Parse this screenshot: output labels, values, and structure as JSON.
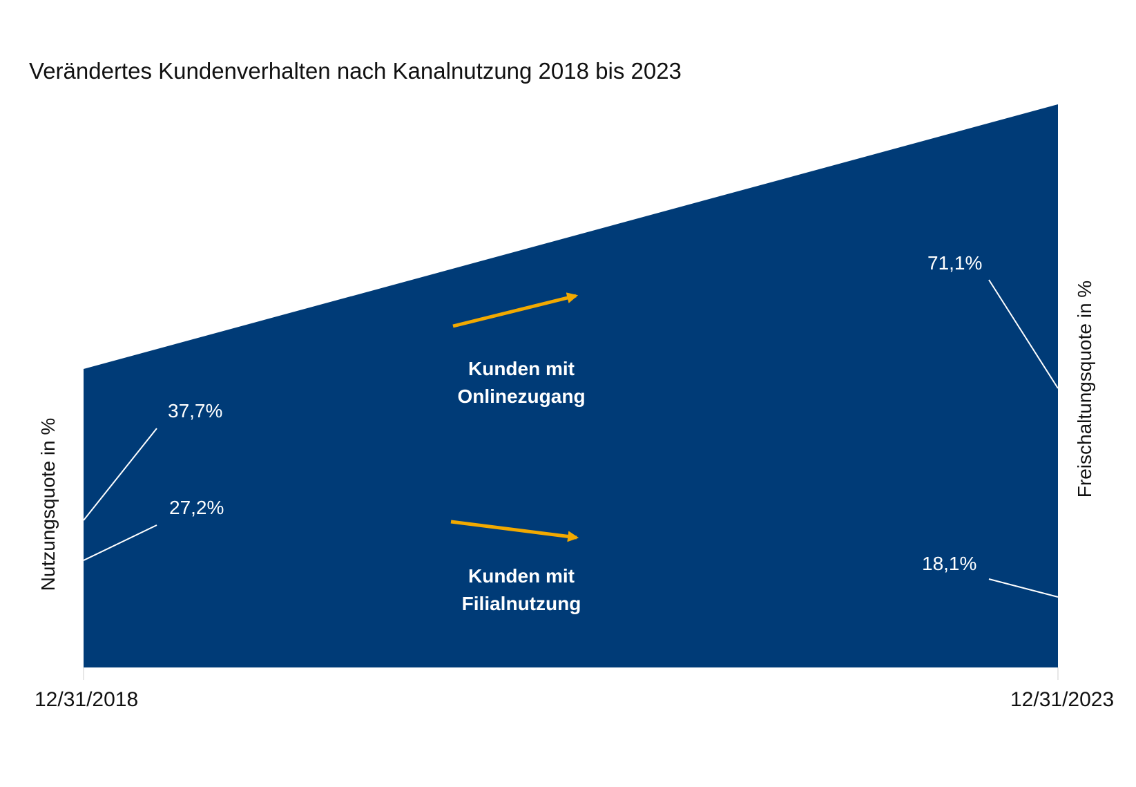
{
  "chart_data": {
    "type": "area",
    "title": "Verändertes Kundenverhalten nach Kanalnutzung 2018 bis 2023",
    "x": [
      "12/31/2018",
      "12/31/2023"
    ],
    "y_left_label": "Nutzungsquote in %",
    "y_right_label": "Freischaltungsquote in %",
    "series": [
      {
        "name": "Kunden mit Onlinezugang",
        "name_lines": [
          "Kunden mit",
          "Onlinezugang"
        ],
        "values": [
          37.7,
          71.1
        ],
        "labels": [
          "37,7%",
          "71,1%"
        ]
      },
      {
        "name": "Kunden mit Filialnutzung",
        "name_lines": [
          "Kunden mit",
          "Filialnutzung"
        ],
        "values": [
          27.2,
          18.1
        ],
        "labels": [
          "27,2%",
          "18,1%"
        ]
      }
    ],
    "colors": {
      "area": "#003b77",
      "arrow": "#f2a900",
      "label": "#ffffff"
    }
  }
}
